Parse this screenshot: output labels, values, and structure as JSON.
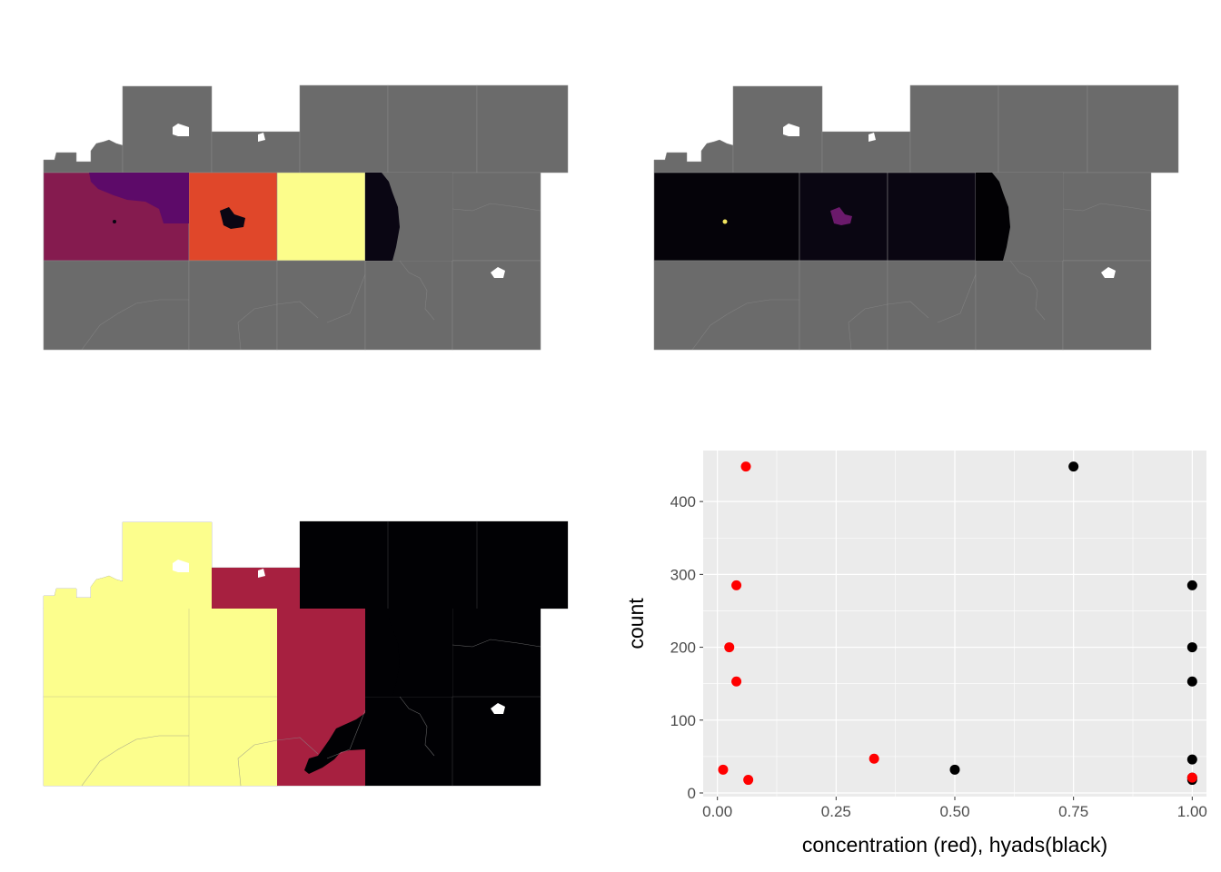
{
  "colors": {
    "na_grey": "#6b6b6b",
    "hole_white": "#ffffff",
    "panel_bg": "#ebebeb",
    "grid": "#ffffff",
    "concentration_points": "#ff0000",
    "hyads_points": "#000000",
    "axis_text": "#4d4d4d",
    "axis_title": "#000000"
  },
  "maps": [
    {
      "id": "map-top-left",
      "cells": [
        [
          "na",
          "na",
          "na",
          "na",
          "na",
          "na"
        ],
        [
          "#851b4f",
          "#e0472a",
          "#fcfd8b",
          "#0a0613",
          "na",
          "na"
        ],
        [
          "na",
          "na",
          "na",
          "na",
          "na",
          "na"
        ]
      ],
      "top_row_special": {
        "c1_fill": "#5d0a69"
      }
    },
    {
      "id": "map-top-right",
      "cells": [
        [
          "na",
          "na",
          "na",
          "na",
          "na",
          "na"
        ],
        [
          "#050309",
          "#0a0612",
          "#0a0612",
          "#020104",
          "na",
          "na"
        ],
        [
          "na",
          "na",
          "na",
          "na",
          "na",
          "na"
        ]
      ]
    },
    {
      "id": "map-bottom-left",
      "cells": [
        [
          "#fcfe8d",
          "#fcfe8d",
          "#a72040",
          "#010104",
          "#010104",
          "#010104"
        ],
        [
          "#fcfe8d",
          "#fcfe8d",
          "#a72040",
          "#010104",
          "#010104",
          "#010104"
        ],
        [
          "#fcfe8d",
          "#fcfe8d",
          "#a72040",
          "#010104",
          "#010104",
          "#010104"
        ]
      ]
    }
  ],
  "chart_data": {
    "type": "scatter",
    "xlabel": "concentration (red), hyads(black)",
    "ylabel": "count",
    "xlim": [
      -0.03,
      1.03
    ],
    "ylim": [
      -5,
      470
    ],
    "x_ticks": [
      0.0,
      0.25,
      0.5,
      0.75,
      1.0
    ],
    "x_tick_labels": [
      "0.00",
      "0.25",
      "0.50",
      "0.75",
      "1.00"
    ],
    "y_ticks": [
      0,
      100,
      200,
      300,
      400
    ],
    "y_tick_labels": [
      "0",
      "100",
      "200",
      "300",
      "400"
    ],
    "grid": true,
    "series": [
      {
        "color": "#000000",
        "points": [
          [
            0.75,
            448
          ],
          [
            1.0,
            285
          ],
          [
            1.0,
            200
          ],
          [
            1.0,
            153
          ],
          [
            1.0,
            46
          ],
          [
            0.5,
            32
          ],
          [
            1.0,
            18
          ],
          [
            1.0,
            21
          ]
        ]
      },
      {
        "color": "#ff0000",
        "points": [
          [
            0.06,
            448
          ],
          [
            0.04,
            285
          ],
          [
            0.025,
            200
          ],
          [
            0.04,
            153
          ],
          [
            0.33,
            47
          ],
          [
            0.012,
            32
          ],
          [
            0.065,
            18
          ],
          [
            1.0,
            21
          ]
        ]
      }
    ]
  }
}
